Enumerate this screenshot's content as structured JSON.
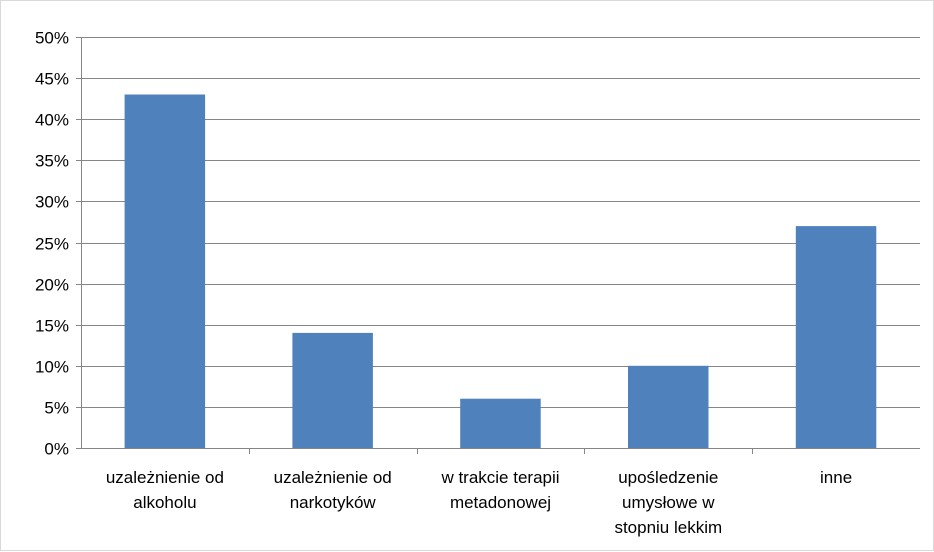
{
  "chart_data": {
    "type": "bar",
    "categories": [
      [
        "uzależnienie od",
        "alkoholu"
      ],
      [
        "uzależnienie od",
        "narkotyków"
      ],
      [
        "w trakcie terapii",
        "metadonowej"
      ],
      [
        "upośledzenie",
        "umysłowe w",
        "stopniu lekkim"
      ],
      [
        "inne"
      ]
    ],
    "values": [
      43,
      14,
      6,
      10,
      27
    ],
    "ylim": [
      0,
      50
    ],
    "yticks": [
      0,
      5,
      10,
      15,
      20,
      25,
      30,
      35,
      40,
      45,
      50
    ],
    "ytick_labels": [
      "0%",
      "5%",
      "10%",
      "15%",
      "20%",
      "25%",
      "30%",
      "35%",
      "40%",
      "45%",
      "50%"
    ],
    "title": "",
    "xlabel": "",
    "ylabel": "",
    "grid": true,
    "legend": "none"
  },
  "colors": {
    "bar": "#4f81bd",
    "grid": "#868686",
    "axis": "#868686"
  }
}
